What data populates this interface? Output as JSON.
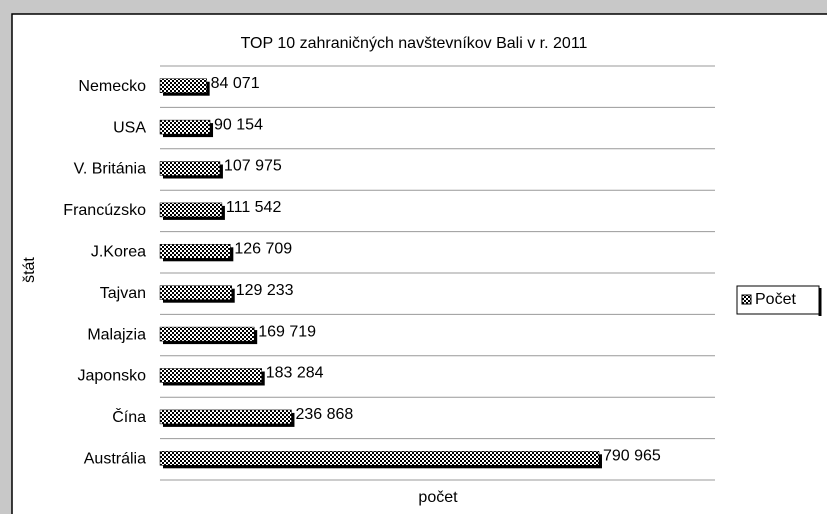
{
  "chart_data": {
    "type": "bar",
    "orientation": "horizontal",
    "title": "TOP 10 zahraničných navštevníkov Bali v r. 2011",
    "x_label": "počet",
    "y_label": "štát",
    "categories": [
      "Nemecko",
      "USA",
      "V. Británia",
      "Francúzsko",
      "J.Korea",
      "Tajvan",
      "Malajzia",
      "Japonsko",
      "Čína",
      "Austrália"
    ],
    "series": [
      {
        "name": "Počet",
        "color": "#000000",
        "values": [
          84071,
          90154,
          107975,
          111542,
          126709,
          129233,
          169719,
          183284,
          236868,
          790965
        ],
        "value_labels": [
          "84 071",
          "90 154",
          "107 975",
          "111 542",
          "126 709",
          "129 233",
          "169 719",
          "183 284",
          "236 868",
          "790 965"
        ]
      }
    ],
    "xlim": [
      0,
      1000000
    ],
    "legend": "right"
  }
}
